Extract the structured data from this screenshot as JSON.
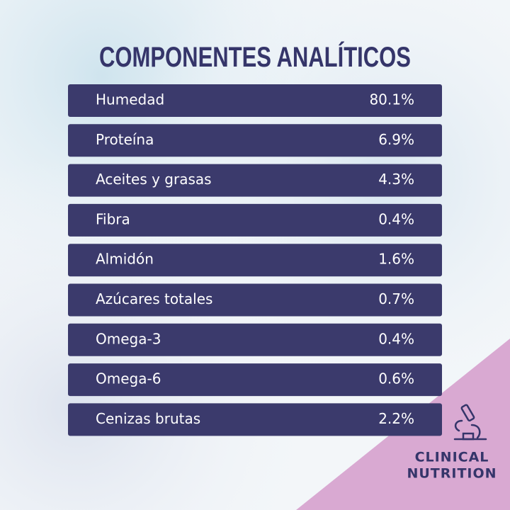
{
  "title": "COMPONENTES ANALÍTICOS",
  "rows": [
    [
      "Humedad",
      "80.1%"
    ],
    [
      "Proteína",
      "6.9%"
    ],
    [
      "Aceites y grasas",
      "4.3%"
    ],
    [
      "Fibra",
      "0.4%"
    ],
    [
      "Almidón",
      "1.6%"
    ],
    [
      "Azúcares totales",
      "0.7%"
    ],
    [
      "Omega-3",
      "0.4%"
    ],
    [
      "Omega-6",
      "0.6%"
    ],
    [
      "Cenizas brutas",
      "2.2%"
    ]
  ],
  "badge": {
    "lines": [
      "CLINICAL",
      "NUTRITION"
    ]
  }
}
